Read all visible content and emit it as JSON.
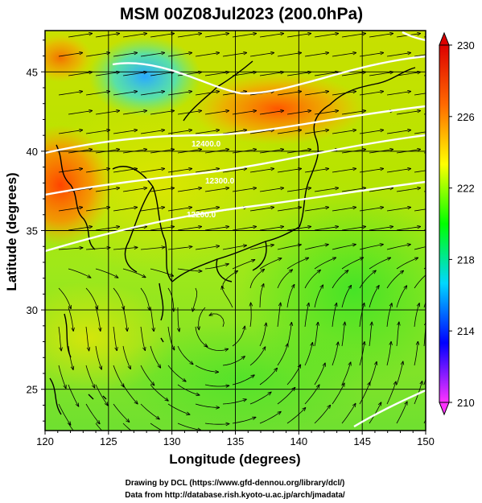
{
  "title": "MSM 00Z08Jul2023 (200.0hPa)",
  "x_axis": {
    "label": "Longitude (degrees)",
    "range": [
      120,
      150
    ],
    "ticks": [
      "120",
      "125",
      "130",
      "135",
      "140",
      "145",
      "150"
    ]
  },
  "y_axis": {
    "label": "Latitude  (degrees)",
    "range": [
      22.4,
      47.6
    ],
    "ticks": [
      "25",
      "30",
      "35",
      "40",
      "45"
    ]
  },
  "colorbar": {
    "range": [
      210,
      230
    ],
    "ticks": [
      "210",
      "214",
      "218",
      "222",
      "226",
      "230"
    ],
    "colors": [
      "#ff33ff",
      "#0000ff",
      "#00d7ff",
      "#00ff00",
      "#ffff00",
      "#ff6a00",
      "#dd0000"
    ]
  },
  "contour_labels": [
    "12400.0",
    "12300.0",
    "12200.0"
  ],
  "credits": {
    "line1": "Drawing by DCL (https://www.gfd-dennou.org/library/dcl/)",
    "line2": "Data from http://database.rish.kyoto-u.ac.jp/arch/jmadata/"
  }
}
